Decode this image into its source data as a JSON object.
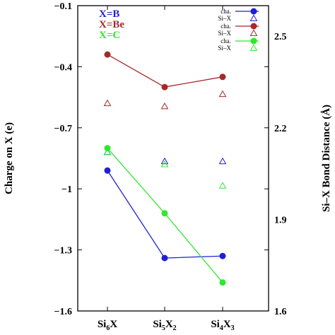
{
  "chart_data": {
    "type": "line",
    "categories": [
      {
        "base": "Si",
        "sub1": "6",
        "mid": "X",
        "sub2": ""
      },
      {
        "base": "Si",
        "sub1": "5",
        "mid": "X",
        "sub2": "2"
      },
      {
        "base": "Si",
        "sub1": "4",
        "mid": "X",
        "sub2": "3"
      }
    ],
    "ylabel": "Charge on X (e)",
    "y2label": "Si–X Bond Distance (Å)",
    "ylim": [
      -1.6,
      -0.1
    ],
    "y2lim": [
      1.6,
      2.6
    ],
    "yticks": [
      "-1.6",
      "-1.3",
      "-1",
      "-0.7",
      "-0.4",
      "-0.1"
    ],
    "y2ticks": [
      "1.6",
      "1.9",
      "2.2",
      "2.5"
    ],
    "grid": false,
    "group_labels": [
      {
        "text": "X=B",
        "color": "#1f1fd6"
      },
      {
        "text": "X=Be",
        "color": "#a52a2a"
      },
      {
        "text": "X=C",
        "color": "#2ee82e"
      }
    ],
    "series": [
      {
        "group": "X=B",
        "color": "#1f1fd6",
        "legend_charge": "cha.",
        "legend_bond": "Si–X",
        "charge": [
          -0.91,
          -1.34,
          -1.33
        ],
        "bond": [
          2.12,
          2.09,
          2.09
        ]
      },
      {
        "group": "X=Be",
        "color": "#a52a2a",
        "legend_charge": "cha.",
        "legend_bond": "Si–X",
        "charge": [
          -0.34,
          -0.5,
          -0.45
        ],
        "bond": [
          2.28,
          2.27,
          2.31
        ]
      },
      {
        "group": "X=C",
        "color": "#2ee82e",
        "legend_charge": "cha.",
        "legend_bond": "Si–X",
        "charge": [
          -0.8,
          -1.12,
          -1.46
        ],
        "bond": [
          2.12,
          2.08,
          2.01
        ]
      }
    ]
  }
}
